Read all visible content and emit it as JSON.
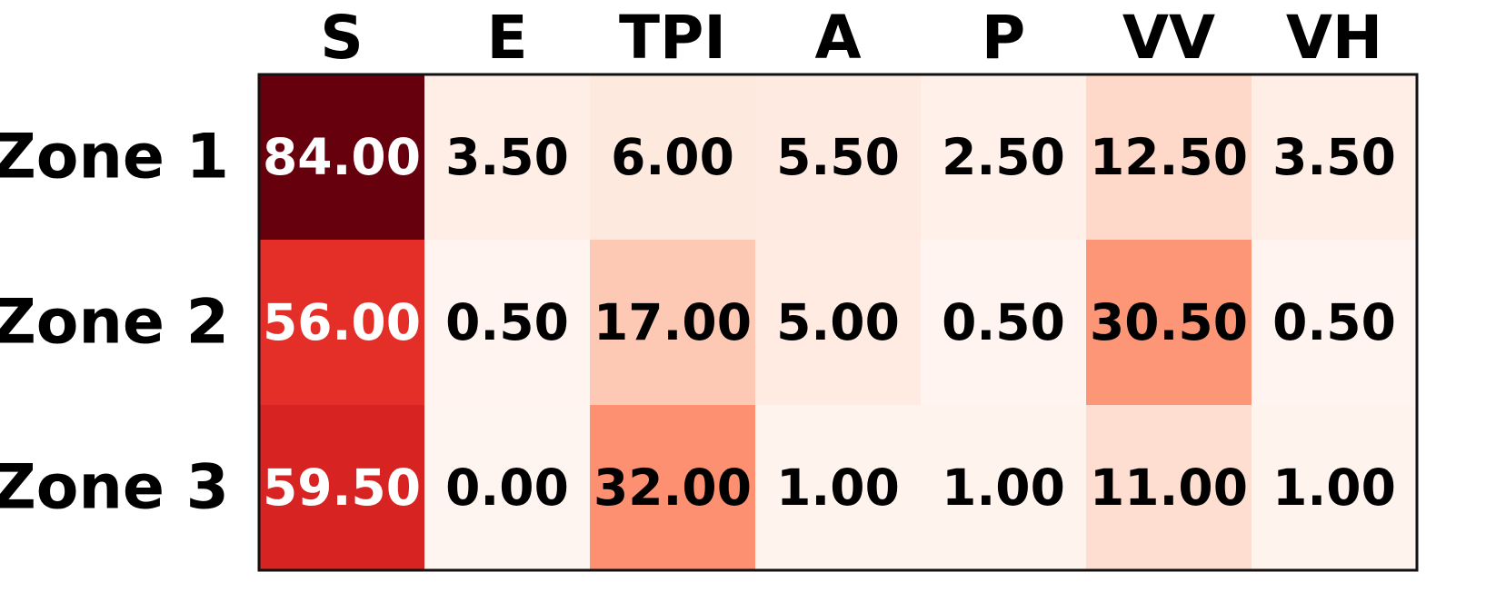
{
  "chart_data": {
    "type": "heatmap",
    "title": "",
    "xlabel": "",
    "ylabel": "",
    "columns": [
      "S",
      "E",
      "TPI",
      "A",
      "P",
      "VV",
      "VH"
    ],
    "rows": [
      "Zone 1",
      "Zone 2",
      "Zone 3"
    ],
    "values": [
      [
        84.0,
        3.5,
        6.0,
        5.5,
        2.5,
        12.5,
        3.5
      ],
      [
        56.0,
        0.5,
        17.0,
        5.0,
        0.5,
        30.5,
        0.5
      ],
      [
        59.5,
        0.0,
        32.0,
        1.0,
        1.0,
        11.0,
        1.0
      ]
    ],
    "value_labels": [
      [
        "84.00",
        "3.50",
        "6.00",
        "5.50",
        "2.50",
        "12.50",
        "3.50"
      ],
      [
        "56.00",
        "0.50",
        "17.00",
        "5.00",
        "0.50",
        "30.50",
        "0.50"
      ],
      [
        "59.50",
        "0.00",
        "32.00",
        "1.00",
        "1.00",
        "11.00",
        "1.00"
      ]
    ],
    "colormap": "Reds",
    "color_range": [
      0,
      84
    ],
    "colorbar": false,
    "grid": false,
    "colors": {
      "low": "#fff5f0",
      "high": "#67000d",
      "text_dark": "#000000",
      "text_light": "#ffffff",
      "border": "#111111"
    }
  }
}
